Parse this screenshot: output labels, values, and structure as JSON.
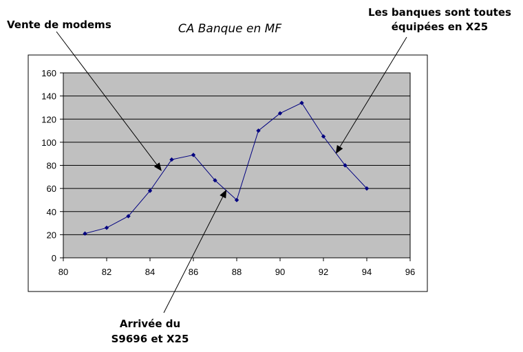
{
  "chart_data": {
    "type": "line",
    "title": "CA Banque en MF",
    "xlabel": "",
    "ylabel": "",
    "xlim": [
      80,
      96
    ],
    "ylim": [
      0,
      160
    ],
    "x_ticks": [
      "80",
      "82",
      "84",
      "86",
      "88",
      "90",
      "92",
      "94",
      "96"
    ],
    "y_ticks": [
      "0",
      "20",
      "40",
      "60",
      "80",
      "100",
      "120",
      "140",
      "160"
    ],
    "grid": "horizontal",
    "legend": "none",
    "series": [
      {
        "x": [
          81,
          82,
          83,
          84,
          85,
          86,
          87,
          88,
          89,
          90,
          91,
          92,
          93,
          94
        ],
        "values": [
          21,
          26,
          36,
          58,
          85,
          89,
          67,
          50,
          110,
          125,
          134,
          105,
          80,
          60
        ]
      }
    ],
    "annotations": [
      {
        "lines": [
          "Vente de modems"
        ],
        "x": 84.5,
        "y": 76
      },
      {
        "lines": [
          "Arrivée du",
          "S9696 et X25"
        ],
        "x": 87.5,
        "y": 58
      },
      {
        "lines": [
          "Les banques sont toutes",
          "équipées en X25"
        ],
        "x": 92.6,
        "y": 91
      }
    ]
  },
  "colors": {
    "plot_background": "#c0c0c0",
    "line": "#000080",
    "marker": "#000080",
    "gridline": "#000000",
    "frame": "#000000"
  }
}
